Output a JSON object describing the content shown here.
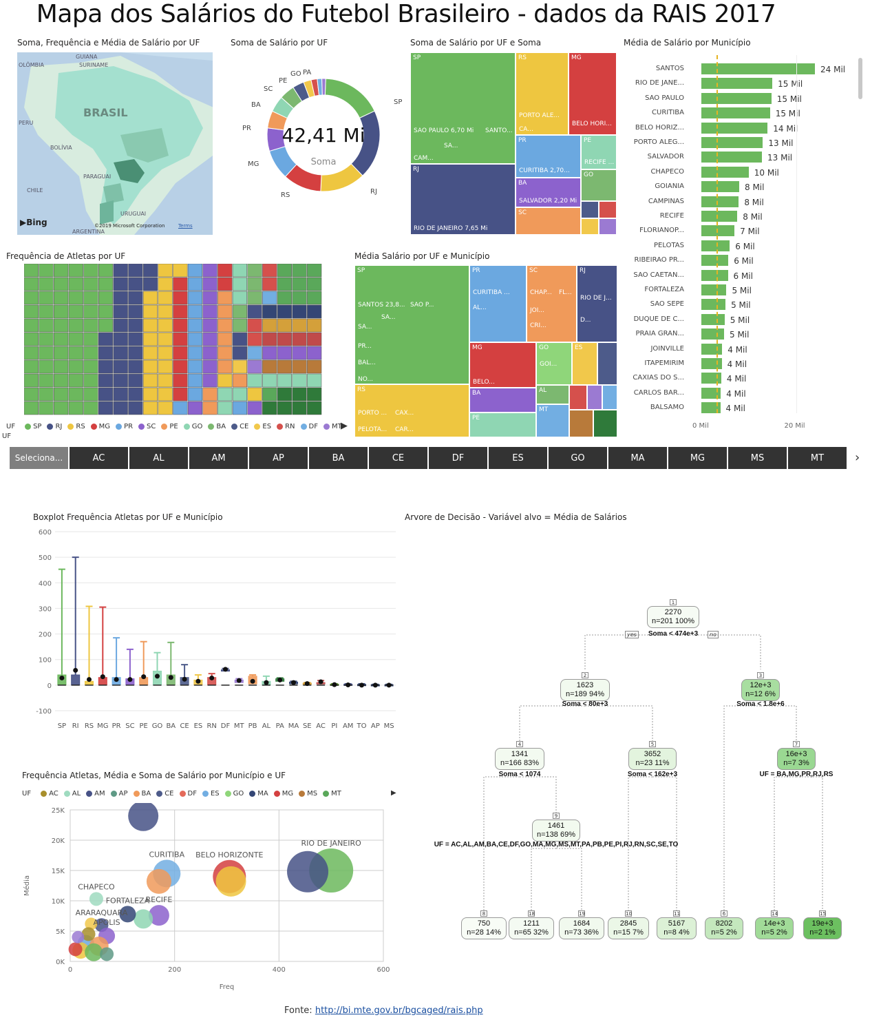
{
  "title": "Mapa dos Salários do Futebol Brasileiro - dados da RAIS 2017",
  "panels": {
    "map": "Soma, Frequência e Média de Salário por UF",
    "donut": "Soma de Salário por UF",
    "treemap1": "Soma de Salário por UF e Soma",
    "bars": "Média de Salário por Município",
    "waffle": "Frequência de Atletas por UF",
    "treemap2": "Média Salário por UF e Município",
    "boxplot": "Boxplot Frequência Atletas por UF e Município",
    "tree": "Arvore de Decisão  - Variável alvo = Média de Salários",
    "scatter": "Frequência Atletas, Média e Soma de Salário por Município e UF"
  },
  "map": {
    "labels": [
      "GUIANA",
      "SURINAME",
      "OLÔMBIA",
      "BRASIL",
      "PERU",
      "BOLÍVIA",
      "PARAGUAI",
      "CHILE",
      "ARGENTINA",
      "URUGUAI"
    ],
    "bing": "Bing",
    "copyright": "©2019 Microsoft Corporation",
    "terms": "Terms"
  },
  "donut": {
    "value": "42,41 Mi",
    "sub": "Soma",
    "labels": [
      "SP",
      "RJ",
      "RS",
      "MG",
      "PR",
      "BA",
      "SC",
      "PE",
      "GO",
      "PA"
    ]
  },
  "treemap1": {
    "cells": [
      "SP",
      "SAO PAULO 6,70 Mi",
      "SANTO...",
      "CAM...",
      "SA...",
      "RS",
      "PORTO ALE...",
      "CA...",
      "MG",
      "BELO HORI...",
      "RJ",
      "RIO DE JANEIRO 7,65 Mi",
      "PR",
      "CURITIBA 2,70...",
      "PE",
      "RECIFE ...",
      "BA",
      "SALVADOR 2,20 Mi",
      "GO",
      "SC"
    ]
  },
  "bars": {
    "rows": [
      {
        "name": "SANTOS",
        "label": "24 Mil",
        "v": 24
      },
      {
        "name": "RIO DE JANE...",
        "label": "15 Mil",
        "v": 15
      },
      {
        "name": "SAO PAULO",
        "label": "15 Mil",
        "v": 14.8
      },
      {
        "name": "CURITIBA",
        "label": "15 Mil",
        "v": 14.5
      },
      {
        "name": "BELO HORIZ...",
        "label": "14 Mil",
        "v": 14
      },
      {
        "name": "PORTO ALEG...",
        "label": "13 Mil",
        "v": 13
      },
      {
        "name": "SALVADOR",
        "label": "13 Mil",
        "v": 12.8
      },
      {
        "name": "CHAPECO",
        "label": "10 Mil",
        "v": 10
      },
      {
        "name": "GOIANIA",
        "label": "8 Mil",
        "v": 8
      },
      {
        "name": "CAMPINAS",
        "label": "8 Mil",
        "v": 7.9
      },
      {
        "name": "RECIFE",
        "label": "8 Mil",
        "v": 7.6
      },
      {
        "name": "FLORIANOP...",
        "label": "7 Mil",
        "v": 7
      },
      {
        "name": "PELOTAS",
        "label": "6 Mil",
        "v": 6
      },
      {
        "name": "RIBEIRAO PR...",
        "label": "6 Mil",
        "v": 5.7
      },
      {
        "name": "SAO CAETAN...",
        "label": "6 Mil",
        "v": 5.6
      },
      {
        "name": "FORTALEZA",
        "label": "5 Mil",
        "v": 5.3
      },
      {
        "name": "SAO SEPE",
        "label": "5 Mil",
        "v": 5.1
      },
      {
        "name": "DUQUE DE C...",
        "label": "5 Mil",
        "v": 4.9
      },
      {
        "name": "PRAIA GRAN...",
        "label": "5 Mil",
        "v": 4.8
      },
      {
        "name": "JOINVILLE",
        "label": "4 Mil",
        "v": 4.4
      },
      {
        "name": "ITAPEMIRIM",
        "label": "4 Mil",
        "v": 4.3
      },
      {
        "name": "CAXIAS DO S...",
        "label": "4 Mil",
        "v": 4.2
      },
      {
        "name": "CARLOS BAR...",
        "label": "4 Mil",
        "v": 4.1
      },
      {
        "name": "BALSAMO",
        "label": "4 Mil",
        "v": 4
      }
    ],
    "axis": [
      "0 Mil",
      "20 Mil"
    ],
    "ref_line": 3.2
  },
  "legend_uf": {
    "label": "UF",
    "items": [
      {
        "n": "SP",
        "c": "#6cb85d"
      },
      {
        "n": "RJ",
        "c": "#475286"
      },
      {
        "n": "RS",
        "c": "#eec640"
      },
      {
        "n": "MG",
        "c": "#d44040"
      },
      {
        "n": "PR",
        "c": "#6ba8e0"
      },
      {
        "n": "SC",
        "c": "#8c62cd"
      },
      {
        "n": "PE",
        "c": "#f09a5a"
      },
      {
        "n": "GO",
        "c": "#8fd6b3"
      },
      {
        "n": "BA",
        "c": "#7cb870"
      },
      {
        "n": "CE",
        "c": "#4d5b8a"
      },
      {
        "n": "ES",
        "c": "#f1c84b"
      },
      {
        "n": "RN",
        "c": "#d5504c"
      },
      {
        "n": "DF",
        "c": "#72aee2"
      },
      {
        "n": "MT",
        "c": "#9b7ad2"
      }
    ]
  },
  "slicer": {
    "items": [
      "Seleciona...",
      "AC",
      "AL",
      "AM",
      "AP",
      "BA",
      "CE",
      "DF",
      "ES",
      "GO",
      "MA",
      "MG",
      "MS",
      "MT"
    ]
  },
  "treemap2": {
    "cells": [
      "SP",
      "SANTOS 23,8...",
      "SAO P...",
      "SA...",
      "SA...",
      "PR...",
      "BAL...",
      "NO...",
      "PR",
      "CURITIBA ...",
      "AL...",
      "SC",
      "CHAP...",
      "FL...",
      "JOI...",
      "CRI...",
      "RJ",
      "RIO DE J...",
      "D...",
      "MG",
      "BELO...",
      "GO",
      "GOI...",
      "ES",
      "RS",
      "PORTO ...",
      "CAX...",
      "PELOTA...",
      "CAR...",
      "BA",
      "AL",
      "MT",
      "PE"
    ]
  },
  "boxplot": {
    "ylim": [
      -100,
      600
    ],
    "yticks": [
      "600",
      "500",
      "400",
      "300",
      "200",
      "100",
      "0",
      "-100"
    ],
    "cats": [
      "SP",
      "RJ",
      "RS",
      "MG",
      "PR",
      "SC",
      "PE",
      "GO",
      "BA",
      "CE",
      "ES",
      "RN",
      "DF",
      "MT",
      "PB",
      "AL",
      "PA",
      "MA",
      "SE",
      "AC",
      "PI",
      "AM",
      "TO",
      "AP",
      "MS"
    ],
    "colors": [
      "#6cb85d",
      "#475286",
      "#eec640",
      "#d44040",
      "#6ba8e0",
      "#8c62cd",
      "#f09a5a",
      "#8fd6b3",
      "#7cb870",
      "#4d5b8a",
      "#f1c84b",
      "#d5504c",
      "#475286",
      "#9b7ad2",
      "#f09a5a",
      "#8fd6b3",
      "#2f7a3a",
      "#344675",
      "#d4a03a",
      "#c04a4a",
      "#5b8a2f",
      "#475286",
      "#344675",
      "#344675",
      "#344675"
    ],
    "max": [
      453,
      500,
      308,
      305,
      185,
      140,
      170,
      127,
      167,
      80,
      40,
      45,
      65,
      25,
      40,
      35,
      28,
      15,
      10,
      18,
      5,
      5,
      5,
      3,
      3
    ],
    "q3": [
      40,
      40,
      15,
      30,
      30,
      25,
      30,
      55,
      40,
      30,
      20,
      30,
      60,
      20,
      35,
      15,
      25,
      12,
      8,
      10,
      4,
      4,
      3,
      2,
      2
    ],
    "q1": [
      0,
      0,
      0,
      0,
      0,
      0,
      0,
      0,
      0,
      0,
      0,
      0,
      60,
      10,
      5,
      0,
      15,
      5,
      3,
      5,
      0,
      0,
      0,
      0,
      0
    ],
    "mean": [
      28,
      58,
      22,
      33,
      22,
      22,
      33,
      35,
      30,
      23,
      15,
      28,
      62,
      18,
      15,
      10,
      20,
      10,
      6,
      13,
      2,
      1,
      0,
      0,
      0
    ]
  },
  "scatter": {
    "legend_label": "UF",
    "legend": [
      {
        "n": "AC",
        "c": "#a88f2c"
      },
      {
        "n": "AL",
        "c": "#9fdbc0"
      },
      {
        "n": "AM",
        "c": "#475286"
      },
      {
        "n": "AP",
        "c": "#5f9a86"
      },
      {
        "n": "BA",
        "c": "#f09a5a"
      },
      {
        "n": "CE",
        "c": "#4d5b8a"
      },
      {
        "n": "DF",
        "c": "#e46a5a"
      },
      {
        "n": "ES",
        "c": "#72aee2"
      },
      {
        "n": "GO",
        "c": "#8fd67a"
      },
      {
        "n": "MA",
        "c": "#344675"
      },
      {
        "n": "MG",
        "c": "#d44040"
      },
      {
        "n": "MS",
        "c": "#b87a3a"
      },
      {
        "n": "MT",
        "c": "#5aa85a"
      }
    ],
    "xlabel": "Freq",
    "ylabel": "Média",
    "xticks": [
      "0",
      "200",
      "400",
      "600"
    ],
    "yticks": [
      "25K",
      "20K",
      "15K",
      "10K",
      "5K",
      "0K"
    ],
    "points": [
      {
        "x": 140,
        "y": 24000,
        "r": 22,
        "c": "#475286",
        "l": ""
      },
      {
        "x": 185,
        "y": 14500,
        "r": 20,
        "c": "#72aee2",
        "l": "CURITIBA"
      },
      {
        "x": 170,
        "y": 13200,
        "r": 18,
        "c": "#f09a5a",
        "l": ""
      },
      {
        "x": 305,
        "y": 14000,
        "r": 24,
        "c": "#d44040",
        "l": "BELO HORIZONTE"
      },
      {
        "x": 308,
        "y": 13200,
        "r": 22,
        "c": "#eec640",
        "l": ""
      },
      {
        "x": 500,
        "y": 15000,
        "r": 32,
        "c": "#6cb85d",
        "l": "RIO DE JANEIRO"
      },
      {
        "x": 455,
        "y": 14800,
        "r": 30,
        "c": "#475286",
        "l": ""
      },
      {
        "x": 50,
        "y": 10300,
        "r": 10,
        "c": "#9fdbc0",
        "l": "CHAPECO"
      },
      {
        "x": 170,
        "y": 7600,
        "r": 15,
        "c": "#8c62cd",
        "l": "RECIFE"
      },
      {
        "x": 140,
        "y": 7000,
        "r": 14,
        "c": "#8fd6b3",
        "l": ""
      },
      {
        "x": 110,
        "y": 7800,
        "r": 12,
        "c": "#344675",
        "l": "FORTALEZA"
      },
      {
        "x": 60,
        "y": 6000,
        "r": 10,
        "c": "#475286",
        "l": "ARARAQUARA"
      },
      {
        "x": 40,
        "y": 6200,
        "r": 9,
        "c": "#f1c84b",
        "l": ""
      },
      {
        "x": 70,
        "y": 4200,
        "r": 12,
        "c": "#8c62cd",
        "l": "APOLIS"
      },
      {
        "x": 30,
        "y": 3000,
        "r": 12,
        "c": "#6ba8e0",
        "l": ""
      },
      {
        "x": 55,
        "y": 2500,
        "r": 14,
        "c": "#f09a5a",
        "l": ""
      },
      {
        "x": 20,
        "y": 1800,
        "r": 12,
        "c": "#eec640",
        "l": ""
      },
      {
        "x": 45,
        "y": 1500,
        "r": 13,
        "c": "#6cb85d",
        "l": ""
      },
      {
        "x": 10,
        "y": 2000,
        "r": 10,
        "c": "#d44040",
        "l": ""
      },
      {
        "x": 35,
        "y": 4500,
        "r": 10,
        "c": "#a88f2c",
        "l": ""
      },
      {
        "x": 70,
        "y": 1200,
        "r": 10,
        "c": "#5f9a86",
        "l": ""
      },
      {
        "x": 15,
        "y": 4000,
        "r": 9,
        "c": "#9b7ad2",
        "l": ""
      }
    ]
  },
  "tree": {
    "nodes": [
      {
        "id": "1",
        "v": "2270",
        "n": "n=201  100%",
        "bg": "#f6fbf4"
      },
      {
        "id": "2",
        "v": "1623",
        "n": "n=189  94%",
        "bg": "#f2faef"
      },
      {
        "id": "3",
        "v": "12e+3",
        "n": "n=12  6%",
        "bg": "#a8dea0"
      },
      {
        "id": "4",
        "v": "1341",
        "n": "n=166  83%",
        "bg": "#f3faf0"
      },
      {
        "id": "5",
        "v": "3652",
        "n": "n=23  11%",
        "bg": "#e3f4de"
      },
      {
        "id": "7",
        "v": "16e+3",
        "n": "n=7  3%",
        "bg": "#9ad892"
      },
      {
        "id": "9",
        "v": "1461",
        "n": "n=138  69%",
        "bg": "#f2faef"
      },
      {
        "id": "8",
        "v": "750",
        "n": "n=28  14%",
        "bg": "#f8fcf6"
      },
      {
        "id": "18",
        "v": "1211",
        "n": "n=65  32%",
        "bg": "#f4faf2"
      },
      {
        "id": "19",
        "v": "1684",
        "n": "n=73  36%",
        "bg": "#f1f9ee"
      },
      {
        "id": "10",
        "v": "2845",
        "n": "n=15  7%",
        "bg": "#ebf7e7"
      },
      {
        "id": "11",
        "v": "5167",
        "n": "n=8  4%",
        "bg": "#dcf1d6"
      },
      {
        "id": "6",
        "v": "8202",
        "n": "n=5  2%",
        "bg": "#c4e8bd"
      },
      {
        "id": "14",
        "v": "14e+3",
        "n": "n=5  2%",
        "bg": "#a1db98"
      },
      {
        "id": "15",
        "v": "19e+3",
        "n": "n=2  1%",
        "bg": "#6cc060"
      }
    ],
    "rules": [
      "Soma < 474e+3",
      "Soma < 80e+3",
      "Soma < 1.8e+6",
      "Soma < 1074",
      "Soma < 162e+3",
      "UF = BA,MG,PR,RJ,RS",
      "UF = AC,AL,AM,BA,CE,DF,GO,MA,MG,MS,MT,PA,PB,PE,PI,RJ,RN,SC,SE,TO"
    ],
    "yes": "yes",
    "no": "no"
  },
  "footer": {
    "label": "Fonte:",
    "link": "http://bi.mte.gov.br/bgcaged/rais.php"
  }
}
